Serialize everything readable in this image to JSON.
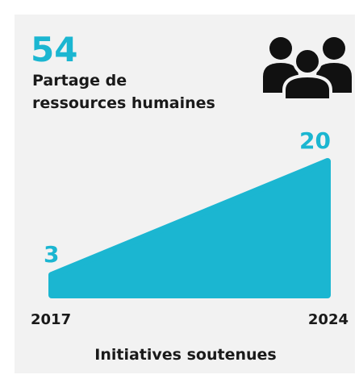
{
  "header": {
    "value": 54,
    "label_lines": [
      "Partage de",
      "ressources humaines"
    ]
  },
  "chart_data": {
    "type": "area",
    "categories": [
      "2017",
      "2024"
    ],
    "values": [
      3,
      20
    ],
    "color": "#1bb6d1",
    "ylim": [
      0,
      20
    ],
    "x_label": "Initiatives soutenues"
  }
}
